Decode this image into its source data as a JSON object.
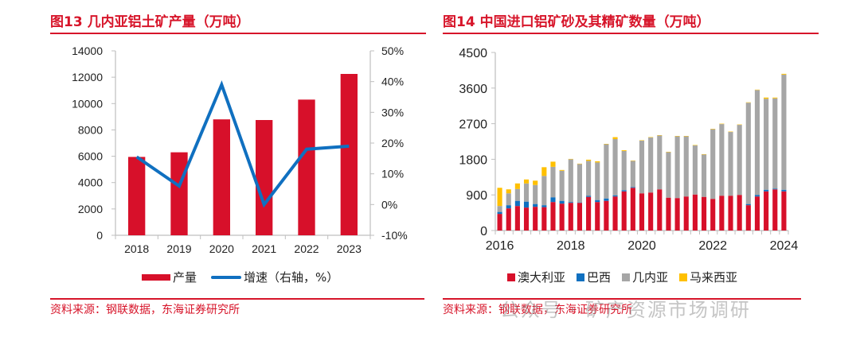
{
  "left": {
    "title": "图13  几内亚铝土矿产量（万吨）",
    "source": "资料来源：钢联数据，东海证券研究所",
    "legend": [
      {
        "label": "产量",
        "color": "#d7102a",
        "kind": "bar"
      },
      {
        "label": "增速（右轴，%）",
        "color": "#1070c0",
        "kind": "line"
      }
    ]
  },
  "right": {
    "title": "图14  中国进口铝矿砂及其精矿数量（万吨）",
    "source": "资料来源：钢联数据，东海证券研究所",
    "watermark": "公众号 · 矿产资源市场调研",
    "legend": [
      {
        "label": "澳大利亚",
        "color": "#d7102a"
      },
      {
        "label": "巴西",
        "color": "#1070c0"
      },
      {
        "label": "几内亚",
        "color": "#a6a6a6"
      },
      {
        "label": "马来西亚",
        "color": "#ffc000"
      }
    ]
  },
  "chart_data": [
    {
      "type": "bar",
      "title": "图13  几内亚铝土矿产量（万吨）",
      "categories": [
        "2018",
        "2019",
        "2020",
        "2021",
        "2022",
        "2023"
      ],
      "series": [
        {
          "name": "产量",
          "type": "bar",
          "axis": "left",
          "color": "#d7102a",
          "values": [
            5950,
            6300,
            8800,
            8750,
            10300,
            12250
          ]
        },
        {
          "name": "增速（右轴，%）",
          "type": "line",
          "axis": "right",
          "color": "#1070c0",
          "values": [
            15.5,
            6.0,
            39.0,
            0.0,
            18.0,
            19.0
          ]
        }
      ],
      "y_left": {
        "min": 0,
        "max": 14000,
        "ticks": [
          0,
          2000,
          4000,
          6000,
          8000,
          10000,
          12000,
          14000
        ]
      },
      "y_right": {
        "min": -10,
        "max": 50,
        "ticks": [
          -10,
          0,
          10,
          20,
          30,
          40,
          50
        ],
        "suffix": "%"
      },
      "xlabel": "",
      "ylabel": "",
      "grid": false,
      "legend_position": "bottom"
    },
    {
      "type": "bar",
      "stacked": true,
      "title": "图14  中国进口铝矿砂及其精矿数量（万吨）",
      "x_tick_labels": [
        "2016",
        "2018",
        "2020",
        "2022",
        "2024"
      ],
      "x_tick_label_every": 8,
      "categories": [
        "2016Q1",
        "2016Q2",
        "2016Q3",
        "2016Q4",
        "2017Q1",
        "2017Q2",
        "2017Q3",
        "2017Q4",
        "2018Q1",
        "2018Q2",
        "2018Q3",
        "2018Q4",
        "2019Q1",
        "2019Q2",
        "2019Q3",
        "2019Q4",
        "2020Q1",
        "2020Q2",
        "2020Q3",
        "2020Q4",
        "2021Q1",
        "2021Q2",
        "2021Q3",
        "2021Q4",
        "2022Q1",
        "2022Q2",
        "2022Q3",
        "2022Q4",
        "2023Q1",
        "2023Q2",
        "2023Q3",
        "2023Q4",
        "2024Q1"
      ],
      "series": [
        {
          "name": "澳大利亚",
          "color": "#d7102a",
          "values": [
            420,
            560,
            620,
            580,
            600,
            590,
            720,
            680,
            700,
            700,
            850,
            720,
            750,
            860,
            990,
            1080,
            940,
            960,
            1040,
            830,
            820,
            860,
            910,
            850,
            800,
            880,
            880,
            900,
            640,
            860,
            990,
            1040,
            990
          ]
        },
        {
          "name": "巴西",
          "color": "#1070c0",
          "values": [
            50,
            80,
            130,
            150,
            70,
            50,
            120,
            70,
            20,
            10,
            30,
            50,
            60,
            30,
            30,
            20,
            0,
            0,
            0,
            0,
            0,
            0,
            0,
            0,
            0,
            0,
            0,
            0,
            30,
            40,
            40,
            20,
            40
          ]
        },
        {
          "name": "几内亚",
          "color": "#a6a6a6",
          "values": [
            150,
            300,
            300,
            460,
            480,
            740,
            770,
            760,
            1080,
            970,
            880,
            950,
            1370,
            1420,
            990,
            660,
            1330,
            1390,
            1360,
            1150,
            1560,
            1520,
            1240,
            1070,
            1760,
            1810,
            1610,
            1770,
            2560,
            2650,
            2300,
            2280,
            2910
          ]
        },
        {
          "name": "马来西亚",
          "color": "#ffc000",
          "values": [
            460,
            100,
            140,
            100,
            110,
            220,
            130,
            20,
            10,
            10,
            30,
            30,
            10,
            50,
            20,
            10,
            10,
            10,
            10,
            10,
            10,
            10,
            10,
            10,
            10,
            10,
            10,
            10,
            10,
            10,
            30,
            20,
            20
          ]
        }
      ],
      "y": {
        "min": 0,
        "max": 4500,
        "ticks": [
          0,
          900,
          1800,
          2700,
          3600,
          4500
        ]
      },
      "xlabel": "",
      "ylabel": "",
      "grid": false,
      "legend_position": "bottom"
    }
  ]
}
